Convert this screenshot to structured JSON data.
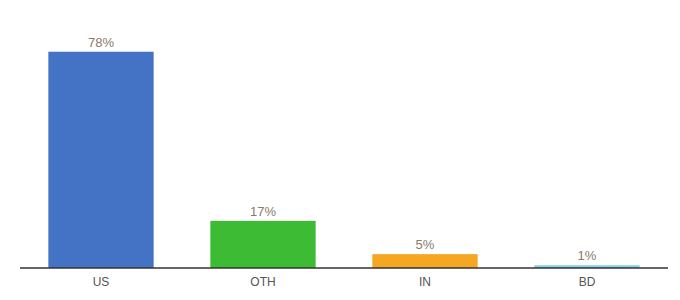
{
  "chart_data": {
    "type": "bar",
    "categories": [
      "US",
      "OTH",
      "IN",
      "BD"
    ],
    "values": [
      78,
      17,
      5,
      1
    ],
    "value_labels": [
      "78%",
      "17%",
      "5%",
      "1%"
    ],
    "colors": [
      "#4472c4",
      "#3dbb35",
      "#f5a623",
      "#87ceeb"
    ],
    "ylim": [
      0,
      88
    ],
    "data_labels": true,
    "tick_labels": "x",
    "grid": false
  }
}
